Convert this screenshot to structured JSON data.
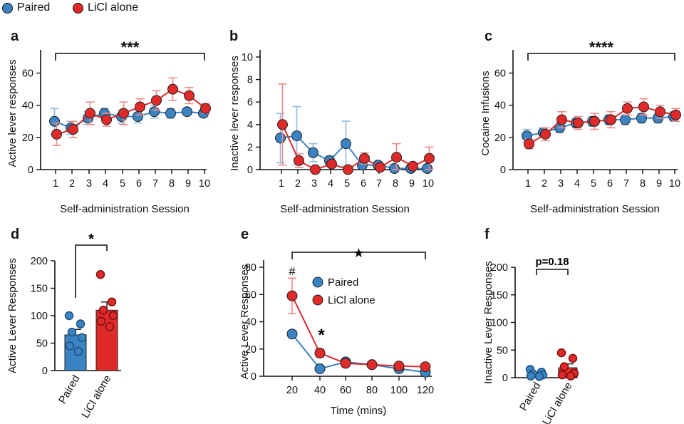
{
  "legend": {
    "items": [
      {
        "label": "Paired",
        "color": "#3a84c4"
      },
      {
        "label": "LiCl alone",
        "color": "#e02a2a"
      }
    ]
  },
  "colors": {
    "paired": "#3a84c4",
    "licl": "#e02a2a",
    "paired_light": "#8fbbe0",
    "licl_light": "#f08a8a"
  },
  "chart_data": [
    {
      "panel": "a",
      "type": "line",
      "ylabel": "Active lever responses",
      "xlabel": "Self-administration Session",
      "x": [
        1,
        2,
        3,
        4,
        5,
        6,
        7,
        8,
        9,
        10
      ],
      "ylim": [
        0,
        70
      ],
      "yticks": [
        0,
        20,
        40,
        60
      ],
      "significance": "***",
      "series": [
        {
          "name": "Paired",
          "values": [
            30,
            26,
            32,
            35,
            33,
            33,
            36,
            35,
            36,
            35
          ],
          "err": [
            8,
            4,
            4,
            3,
            4,
            4,
            4,
            3,
            2,
            2
          ]
        },
        {
          "name": "LiCl alone",
          "values": [
            22,
            25,
            35,
            31,
            35,
            39,
            43,
            50,
            46,
            38
          ],
          "err": [
            7,
            5,
            7,
            4,
            7,
            5,
            6,
            7,
            5,
            3
          ]
        }
      ]
    },
    {
      "panel": "b",
      "type": "line",
      "ylabel": "Inactive lever  responses",
      "xlabel": "Self-administration Session",
      "x": [
        1,
        2,
        3,
        4,
        5,
        6,
        7,
        8,
        9,
        10
      ],
      "ylim": [
        0,
        10
      ],
      "yticks": [
        0,
        2,
        4,
        6,
        8,
        10
      ],
      "series": [
        {
          "name": "Paired",
          "values": [
            2.8,
            3.0,
            1.5,
            0.8,
            2.3,
            0.4,
            0.4,
            0.1,
            0.1,
            0.1
          ],
          "err": [
            2.2,
            2.6,
            0.8,
            0.4,
            2.0,
            0.3,
            0.3,
            0.1,
            0.1,
            0.1
          ]
        },
        {
          "name": "LiCl alone",
          "values": [
            4.0,
            0.8,
            0.0,
            0.5,
            0.0,
            1.0,
            0.2,
            1.1,
            0.3,
            1.0
          ],
          "err": [
            3.6,
            0.6,
            0.1,
            0.3,
            0.1,
            0.5,
            0.2,
            1.2,
            0.3,
            1.0
          ]
        }
      ]
    },
    {
      "panel": "c",
      "type": "line",
      "ylabel": "Cocaine Infusions",
      "xlabel": "Self-administration Session",
      "x": [
        1,
        2,
        3,
        4,
        5,
        6,
        7,
        8,
        9,
        10
      ],
      "ylim": [
        0,
        70
      ],
      "yticks": [
        0,
        20,
        40,
        60
      ],
      "significance": "****",
      "series": [
        {
          "name": "Paired",
          "values": [
            21,
            23,
            26,
            29,
            30,
            31,
            31,
            32,
            32,
            33
          ],
          "err": [
            4,
            3,
            3,
            3,
            3,
            3,
            3,
            3,
            3,
            3
          ]
        },
        {
          "name": "LiCl alone",
          "values": [
            16,
            22,
            31,
            29,
            30,
            31,
            38,
            39,
            36,
            34
          ],
          "err": [
            3,
            4,
            5,
            4,
            5,
            5,
            4,
            5,
            4,
            4
          ]
        }
      ]
    },
    {
      "panel": "d",
      "type": "bar",
      "ylabel": "Active Lever Responses",
      "categories": [
        "Paired",
        "LiCl alone"
      ],
      "ylim": [
        0,
        200
      ],
      "yticks": [
        0,
        50,
        100,
        150,
        200
      ],
      "significance": "*",
      "values": [
        65,
        110
      ],
      "err": [
        10,
        15
      ],
      "points": [
        [
          100,
          85,
          70,
          60,
          45,
          35
        ],
        [
          175,
          125,
          110,
          100,
          90,
          80
        ]
      ]
    },
    {
      "panel": "e",
      "type": "line",
      "ylabel": "Active Lever Responses",
      "xlabel": "Time (mins)",
      "x": [
        20,
        40,
        60,
        80,
        100,
        120
      ],
      "ylim": [
        0,
        80
      ],
      "yticks": [
        0,
        20,
        40,
        60,
        80
      ],
      "significance": "★",
      "annotations": [
        "#",
        "*"
      ],
      "legend": [
        "Paired",
        "LiCl alone"
      ],
      "series": [
        {
          "name": "Paired",
          "values": [
            31,
            5.5,
            10.5,
            8.5,
            5.5,
            3
          ],
          "err": [
            1,
            1,
            1,
            1,
            1,
            1
          ]
        },
        {
          "name": "LiCl alone",
          "values": [
            59,
            17,
            9.5,
            8.5,
            7.5,
            7
          ],
          "err": [
            13,
            3,
            2,
            2,
            2,
            1.5
          ]
        }
      ]
    },
    {
      "panel": "f",
      "type": "bar",
      "ylabel": "Inactive Lever Responses",
      "categories": [
        "Paired",
        "LiCl alone"
      ],
      "ylim": [
        0,
        200
      ],
      "yticks": [
        0,
        50,
        100,
        150,
        200
      ],
      "significance": "p=0.18",
      "values": [
        7,
        18
      ],
      "err": [
        2,
        7
      ],
      "points": [
        [
          15,
          10,
          7,
          5,
          3,
          2
        ],
        [
          45,
          35,
          20,
          8,
          5,
          3
        ]
      ]
    }
  ]
}
